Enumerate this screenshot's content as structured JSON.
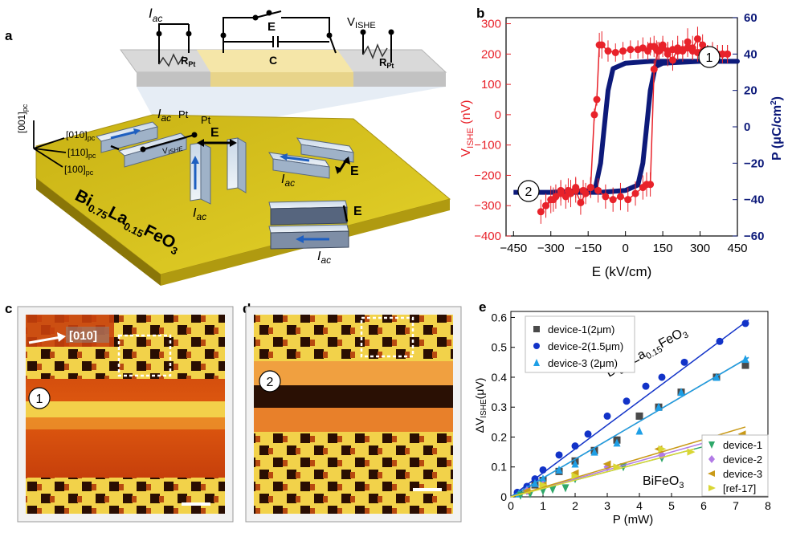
{
  "panel_labels": {
    "a": "a",
    "b": "b",
    "c": "c",
    "d": "d",
    "e": "e"
  },
  "schematic": {
    "iac_top": "I",
    "iac_sub": "ac",
    "e_field": "E",
    "c_label": "C",
    "v_ishe_top": "V",
    "v_ishe_sub": "ISHE",
    "r_pt": "R",
    "r_pt_sub": "Pt",
    "axis_001": "[001]",
    "axis_010": "[010]",
    "axis_110": "[110]",
    "axis_100": "[100]",
    "pc": "pc",
    "pt": "Pt",
    "v_ishe_device": "V",
    "v_ishe_device_sub": "ISHE",
    "e_device": "E",
    "iac_device": "I",
    "ac": "ac",
    "film_bi": "Bi",
    "film_bi_sub": "0.75",
    "film_la": "La",
    "film_la_sub": "0.15",
    "film_feo": "FeO",
    "film_feo_sub": "3"
  },
  "micro": {
    "dir_label": "[010]",
    "state1": "1",
    "state2": "2"
  },
  "colors": {
    "red": "#e8222a",
    "navy": "#0d1a7a",
    "blue": "#1233c8",
    "cyan": "#1e9fe6",
    "gray": "#4a4a4a",
    "green": "#2fa86a",
    "purple": "#b27be6",
    "orange": "#c99a18",
    "yellow": "#d9d634",
    "film": "#d9c21a"
  },
  "chart_data": [
    {
      "id": "b",
      "type": "line",
      "xlabel": "E (kV/cm)",
      "ylabel_left": "V",
      "ylabel_left_sub": "ISHE",
      "ylabel_left_unit": " (nV)",
      "ylabel_right": "P (μC/cm",
      "ylabel_right_sup": "2",
      "ylabel_right_end": ")",
      "xlim": [
        -480,
        450
      ],
      "ylim_left": [
        -400,
        320
      ],
      "ylim_right": [
        -60,
        60
      ],
      "x_ticks": [
        -450,
        -300,
        -150,
        0,
        150,
        300,
        450
      ],
      "x_tick_labels": [
        "−450",
        "−300",
        "−150",
        "0",
        "150",
        "300",
        "450"
      ],
      "y_left_ticks": [
        300,
        200,
        100,
        0,
        -100,
        -200,
        -300,
        -400
      ],
      "y_left_tick_labels": [
        "300",
        "200",
        "100",
        "0",
        "−100",
        "−200",
        "−300",
        "−400"
      ],
      "y_right_ticks": [
        60,
        40,
        20,
        0,
        -20,
        -40,
        -60
      ],
      "y_right_tick_labels": [
        "60",
        "40",
        "20",
        "0",
        "−20",
        "−40",
        "−60"
      ],
      "markers": [
        "1",
        "2"
      ],
      "series": [
        {
          "name": "V_ISHE",
          "axis": "left",
          "x": [
            -340,
            -320,
            -300,
            -280,
            -260,
            -240,
            -220,
            -200,
            -180,
            -160,
            -140,
            -125,
            -115,
            -105,
            -95,
            -70,
            -40,
            -10,
            20,
            50,
            70,
            90,
            100,
            115,
            125,
            135,
            150,
            170,
            190,
            210,
            230,
            250,
            270,
            290,
            310,
            330,
            350,
            370,
            390,
            410
          ],
          "y": [
            -320,
            -300,
            -280,
            -270,
            -250,
            -270,
            -260,
            -250,
            -290,
            -260,
            -240,
            0,
            50,
            230,
            230,
            210,
            205,
            210,
            215,
            215,
            220,
            210,
            225,
            225,
            215,
            210,
            230,
            200,
            180,
            220,
            210,
            240,
            220,
            250,
            230,
            200,
            210,
            200,
            200,
            200
          ],
          "err": [
            40,
            35,
            45,
            40,
            35,
            40,
            45,
            40,
            40,
            35,
            30,
            20,
            20,
            40,
            45,
            35,
            30,
            30,
            30,
            30,
            35,
            30,
            30,
            35,
            30,
            30,
            30,
            40,
            35,
            40,
            35,
            45,
            40,
            40,
            35,
            30,
            25,
            30,
            30,
            30
          ]
        },
        {
          "name": "V_ISHE_return",
          "axis": "left",
          "x": [
            410,
            390,
            370,
            350,
            330,
            310,
            290,
            270,
            250,
            230,
            210,
            190,
            170,
            150,
            130,
            115,
            100,
            85,
            70,
            40,
            10,
            -20,
            -50,
            -80,
            -110,
            -140,
            -170,
            -200,
            -230,
            -260,
            -290,
            -320
          ],
          "y": [
            200,
            200,
            200,
            210,
            200,
            210,
            205,
            210,
            220,
            215,
            210,
            215,
            210,
            220,
            210,
            150,
            -230,
            -230,
            -240,
            -260,
            -280,
            -270,
            -280,
            -270,
            -250,
            -240,
            -250,
            -240,
            -250,
            -260,
            -280,
            -300
          ],
          "err": [
            30,
            30,
            30,
            30,
            30,
            30,
            30,
            30,
            30,
            30,
            30,
            30,
            30,
            30,
            30,
            30,
            40,
            40,
            40,
            40,
            40,
            45,
            40,
            40,
            40,
            35,
            35,
            35,
            40,
            40,
            40,
            40
          ]
        },
        {
          "name": "P",
          "axis": "right",
          "description": "saturated hysteresis loop",
          "x": [
            -450,
            -300,
            -150,
            -120,
            -100,
            -85,
            -70,
            -50,
            0,
            100,
            200,
            300,
            400,
            450,
            300,
            150,
            120,
            100,
            85,
            70,
            50,
            0,
            -100,
            -200,
            -300,
            -450
          ],
          "y": [
            -36,
            -36,
            -35,
            -33,
            -20,
            0,
            20,
            32,
            35,
            36,
            36,
            36,
            36,
            36,
            36,
            35,
            33,
            20,
            0,
            -20,
            -32,
            -35,
            -36,
            -36,
            -36,
            -36
          ]
        }
      ]
    },
    {
      "id": "e",
      "type": "scatter",
      "xlabel": "P (mW)",
      "ylabel": "ΔV",
      "ylabel_sub": "ISHE",
      "ylabel_unit": "(μV)",
      "xlim": [
        0,
        8
      ],
      "ylim": [
        0,
        0.62
      ],
      "x_ticks": [
        0,
        1,
        2,
        3,
        4,
        5,
        6,
        7,
        8
      ],
      "x_tick_labels": [
        "0",
        "1",
        "2",
        "3",
        "4",
        "5",
        "6",
        "7",
        "8"
      ],
      "y_ticks": [
        0,
        0.1,
        0.2,
        0.3,
        0.4,
        0.5,
        0.6
      ],
      "y_tick_labels": [
        "0",
        "0.1",
        "0.2",
        "0.3",
        "0.4",
        "0.5",
        "0.6"
      ],
      "annotations": {
        "bfo_la": "Bi",
        "bfo_la_sub1": "0.75",
        "bfo_la_mid": "La",
        "bfo_la_sub2": "0.15",
        "bfo_la_end": "FeO",
        "bfo_la_sub3": "3",
        "bfo": "BiFeO",
        "bfo_sub": "3"
      },
      "series": [
        {
          "name": "device-1(2μm)",
          "marker": "square",
          "color": "#4a4a4a",
          "x": [
            0.25,
            0.5,
            0.75,
            1.0,
            1.5,
            2.0,
            2.6,
            3.3,
            4.0,
            4.6,
            5.3,
            6.4,
            7.3
          ],
          "y": [
            0.012,
            0.024,
            0.04,
            0.055,
            0.085,
            0.12,
            0.155,
            0.19,
            0.27,
            0.3,
            0.35,
            0.4,
            0.44
          ],
          "fit_slope": 0.063
        },
        {
          "name": "device-2(1.5μm)",
          "marker": "circle",
          "color": "#1233c8",
          "x": [
            0.2,
            0.5,
            0.75,
            1.0,
            1.5,
            2.0,
            2.4,
            3.0,
            3.6,
            4.2,
            4.7,
            5.4,
            6.5,
            7.3
          ],
          "y": [
            0.015,
            0.035,
            0.06,
            0.09,
            0.14,
            0.17,
            0.21,
            0.27,
            0.32,
            0.37,
            0.4,
            0.45,
            0.52,
            0.58
          ],
          "fit_slope": 0.08
        },
        {
          "name": "device-3 (2μm)",
          "marker": "triangle-up",
          "color": "#1e9fe6",
          "x": [
            0.25,
            0.5,
            0.75,
            1.0,
            1.5,
            2.0,
            2.6,
            3.3,
            4.0,
            4.6,
            5.3,
            6.4,
            7.3
          ],
          "y": [
            0.01,
            0.025,
            0.045,
            0.06,
            0.09,
            0.11,
            0.15,
            0.18,
            0.22,
            0.3,
            0.35,
            0.4,
            0.46
          ],
          "fit_slope": 0.063
        },
        {
          "name": "device-1",
          "marker": "triangle-down",
          "color": "#2fa86a",
          "x": [
            0.3,
            0.6,
            1.0,
            1.3,
            1.7,
            2.0,
            3.5,
            4.7,
            6.3
          ],
          "y": [
            0.005,
            0.01,
            0.02,
            0.025,
            0.03,
            0.06,
            0.1,
            0.13,
            0.17
          ],
          "fit_slope": 0.028
        },
        {
          "name": "device-2",
          "marker": "diamond",
          "color": "#b27be6",
          "x": [
            0.5,
            1.0,
            2.0,
            3.0,
            4.7,
            6.3
          ],
          "y": [
            0.02,
            0.04,
            0.07,
            0.1,
            0.14,
            0.19
          ],
          "fit_slope": 0.03
        },
        {
          "name": "device-3",
          "marker": "triangle-left",
          "color": "#c99a18",
          "x": [
            0.5,
            1.0,
            2.0,
            3.0,
            4.6,
            6.3,
            7.2
          ],
          "y": [
            0.02,
            0.04,
            0.08,
            0.11,
            0.16,
            0.19,
            0.21
          ],
          "fit_slope": 0.032
        },
        {
          "name": "[ref-17]",
          "marker": "triangle-right",
          "color": "#d9d634",
          "x": [
            1.0,
            2.0,
            3.3,
            4.7,
            5.6
          ],
          "y": [
            0.04,
            0.07,
            0.1,
            0.16,
            0.15
          ],
          "fit_slope": 0.028
        }
      ]
    }
  ]
}
